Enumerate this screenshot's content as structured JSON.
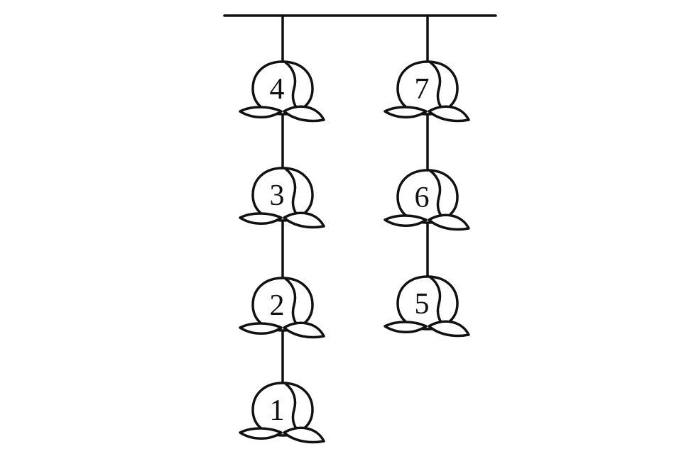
{
  "diagram": {
    "strings": [
      {
        "name": "left-string",
        "peaches": [
          {
            "label": "4"
          },
          {
            "label": "3"
          },
          {
            "label": "2"
          },
          {
            "label": "1"
          }
        ]
      },
      {
        "name": "right-string",
        "peaches": [
          {
            "label": "7"
          },
          {
            "label": "6"
          },
          {
            "label": "5"
          }
        ]
      }
    ]
  },
  "colors": {
    "ink": "#111111",
    "background": "#ffffff"
  }
}
